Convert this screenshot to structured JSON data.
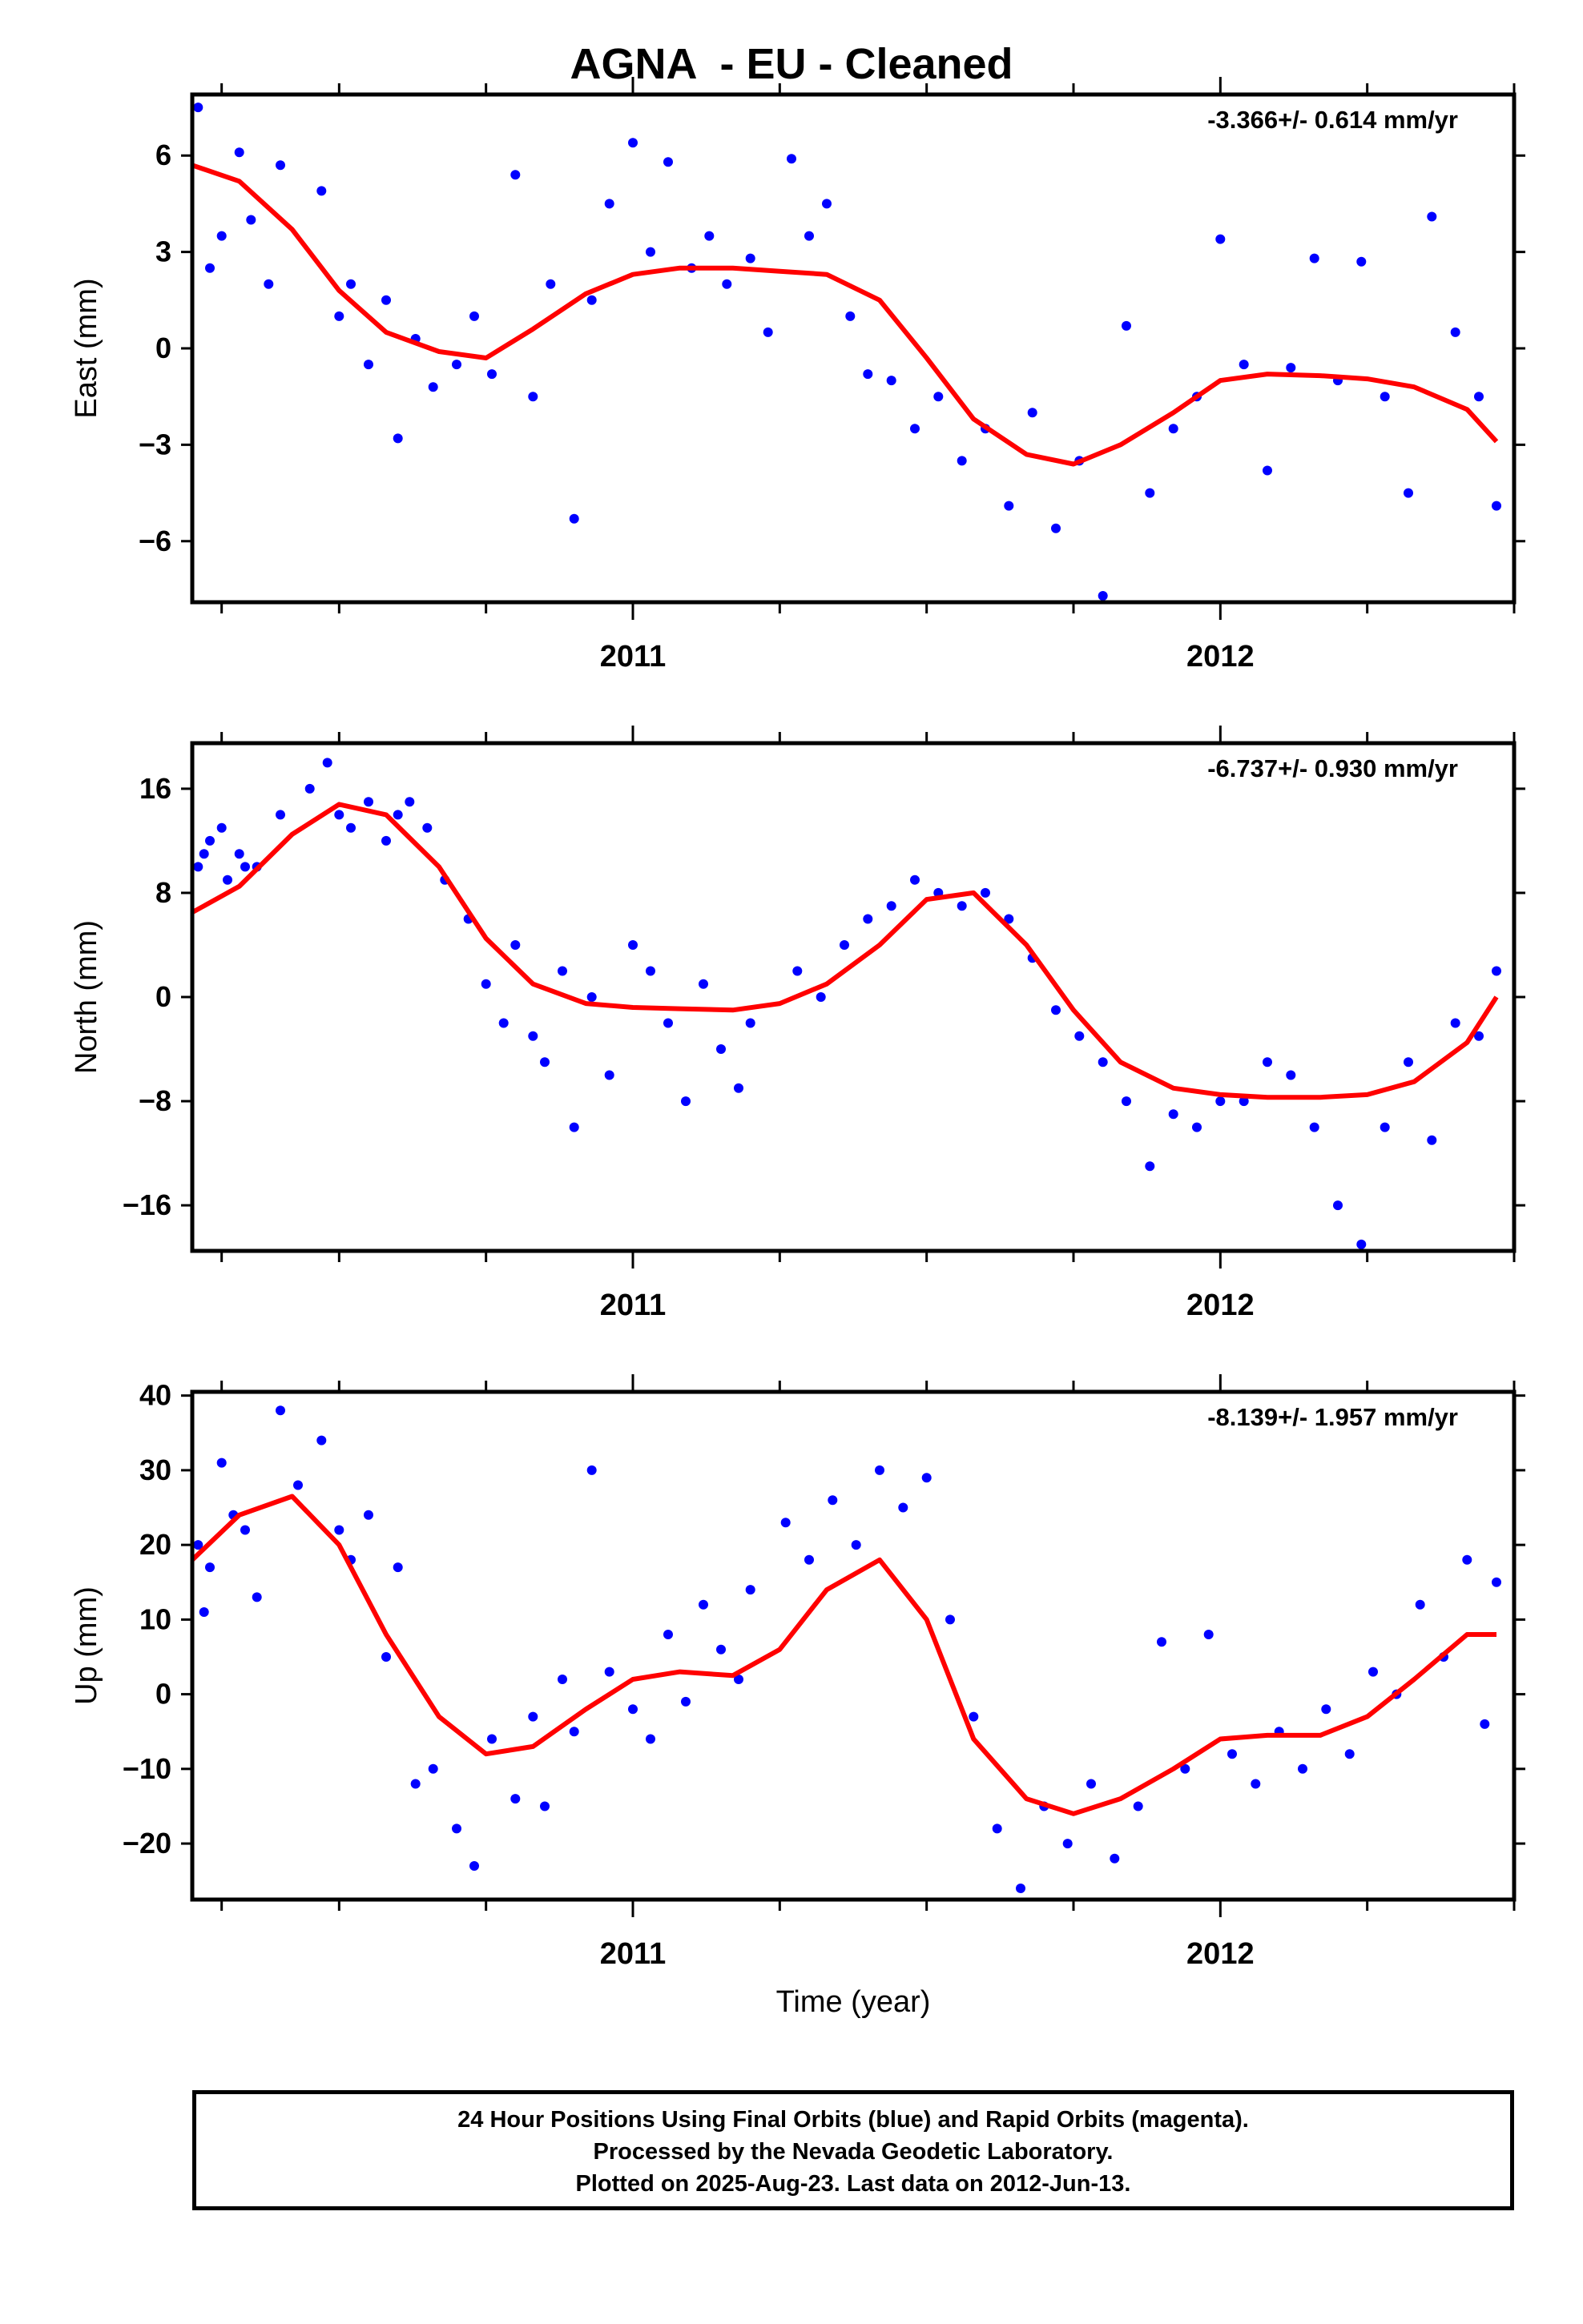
{
  "title": "AGNA  - EU - Cleaned",
  "footer": {
    "line1": "24 Hour Positions Using Final Orbits (blue) and Rapid Orbits (magenta).",
    "line2": "Processed by the Nevada Geodetic Laboratory.",
    "line3": "Plotted on 2025-Aug-23. Last data on 2012-Jun-13."
  },
  "colors": {
    "points": "#0000ff",
    "fit": "#ff0000",
    "axis": "#000000"
  },
  "chart_data": [
    {
      "type": "scatter",
      "name": "east",
      "ylabel": "East (mm)",
      "xlabel": "",
      "rate_label": "-3.366+/- 0.614 mm/yr",
      "xlim": [
        2010.25,
        2012.5
      ],
      "ylim": [
        -7.9,
        7.9
      ],
      "yticks": [
        -6,
        -3,
        0,
        3,
        6
      ],
      "yticklabels": [
        "−6",
        "−3",
        "0",
        "3",
        "6"
      ],
      "xticks": [
        2011,
        2012
      ],
      "xminor": [
        2010.3,
        2010.5,
        2010.75,
        2011.25,
        2011.5,
        2011.75,
        2012.25,
        2012.5
      ],
      "fit_x": [
        2010.25,
        2010.33,
        2010.42,
        2010.5,
        2010.58,
        2010.67,
        2010.75,
        2010.83,
        2010.92,
        2011.0,
        2011.08,
        2011.17,
        2011.25,
        2011.33,
        2011.42,
        2011.5,
        2011.58,
        2011.67,
        2011.75,
        2011.83,
        2011.92,
        2012.0,
        2012.08,
        2012.17,
        2012.25,
        2012.33,
        2012.42,
        2012.47
      ],
      "fit_y": [
        5.7,
        5.2,
        3.7,
        1.8,
        0.5,
        -0.1,
        -0.3,
        0.6,
        1.7,
        2.3,
        2.5,
        2.5,
        2.4,
        2.3,
        1.5,
        -0.3,
        -2.2,
        -3.3,
        -3.6,
        -3.0,
        -2.0,
        -1.0,
        -0.8,
        -0.85,
        -0.95,
        -1.2,
        -1.9,
        -2.9
      ],
      "points": {
        "x": [
          2010.26,
          2010.28,
          2010.3,
          2010.33,
          2010.35,
          2010.38,
          2010.4,
          2010.47,
          2010.5,
          2010.52,
          2010.55,
          2010.58,
          2010.6,
          2010.63,
          2010.66,
          2010.7,
          2010.73,
          2010.76,
          2010.8,
          2010.83,
          2010.86,
          2010.9,
          2010.93,
          2010.96,
          2011.0,
          2011.03,
          2011.06,
          2011.1,
          2011.13,
          2011.16,
          2011.2,
          2011.23,
          2011.27,
          2011.3,
          2011.33,
          2011.37,
          2011.4,
          2011.44,
          2011.48,
          2011.52,
          2011.56,
          2011.6,
          2011.64,
          2011.68,
          2011.72,
          2011.76,
          2011.8,
          2011.84,
          2011.88,
          2011.92,
          2011.96,
          2012.0,
          2012.04,
          2012.08,
          2012.12,
          2012.16,
          2012.2,
          2012.24,
          2012.28,
          2012.32,
          2012.36,
          2012.4,
          2012.44,
          2012.47
        ],
        "y": [
          7.5,
          2.5,
          3.5,
          6.1,
          4.0,
          2.0,
          5.7,
          4.9,
          1.0,
          2.0,
          -0.5,
          1.5,
          -2.8,
          0.3,
          -1.2,
          -0.5,
          1.0,
          -0.8,
          5.4,
          -1.5,
          2.0,
          -5.3,
          1.5,
          4.5,
          6.4,
          3.0,
          5.8,
          2.5,
          3.5,
          2.0,
          2.8,
          0.5,
          5.9,
          3.5,
          4.5,
          1.0,
          -0.8,
          -1.0,
          -2.5,
          -1.5,
          -3.5,
          -2.5,
          -4.9,
          -2.0,
          -5.6,
          -3.5,
          -7.7,
          0.7,
          -4.5,
          -2.5,
          -1.5,
          3.4,
          -0.5,
          -3.8,
          -0.6,
          2.8,
          -1.0,
          2.7,
          -1.5,
          -4.5,
          4.1,
          0.5,
          -1.5,
          -4.9
        ]
      }
    },
    {
      "type": "scatter",
      "name": "north",
      "ylabel": "North (mm)",
      "xlabel": "",
      "rate_label": "-6.737+/- 0.930 mm/yr",
      "xlim": [
        2010.25,
        2012.5
      ],
      "ylim": [
        -19.5,
        19.5
      ],
      "yticks": [
        -16,
        -8,
        0,
        8,
        16
      ],
      "yticklabels": [
        "−16",
        "−8",
        "0",
        "8",
        "16"
      ],
      "xticks": [
        2011,
        2012
      ],
      "xminor": [
        2010.3,
        2010.5,
        2010.75,
        2011.25,
        2011.5,
        2011.75,
        2012.25,
        2012.5
      ],
      "fit_x": [
        2010.25,
        2010.33,
        2010.42,
        2010.5,
        2010.58,
        2010.67,
        2010.75,
        2010.83,
        2010.92,
        2011.0,
        2011.08,
        2011.17,
        2011.25,
        2011.33,
        2011.42,
        2011.5,
        2011.58,
        2011.67,
        2011.75,
        2011.83,
        2011.92,
        2012.0,
        2012.08,
        2012.17,
        2012.25,
        2012.33,
        2012.42,
        2012.47
      ],
      "fit_y": [
        6.5,
        8.5,
        12.5,
        14.8,
        14.0,
        10.0,
        4.5,
        1.0,
        -0.5,
        -0.8,
        -0.9,
        -1.0,
        -0.5,
        1.0,
        4.0,
        7.5,
        8.0,
        4.0,
        -1.0,
        -5.0,
        -7.0,
        -7.5,
        -7.7,
        -7.7,
        -7.5,
        -6.5,
        -3.5,
        0.0
      ],
      "points": {
        "x": [
          2010.26,
          2010.27,
          2010.28,
          2010.3,
          2010.31,
          2010.33,
          2010.34,
          2010.36,
          2010.4,
          2010.45,
          2010.48,
          2010.5,
          2010.52,
          2010.55,
          2010.58,
          2010.6,
          2010.62,
          2010.65,
          2010.68,
          2010.72,
          2010.75,
          2010.78,
          2010.8,
          2010.83,
          2010.85,
          2010.88,
          2010.9,
          2010.93,
          2010.96,
          2011.0,
          2011.03,
          2011.06,
          2011.09,
          2011.12,
          2011.15,
          2011.18,
          2011.2,
          2011.28,
          2011.32,
          2011.36,
          2011.4,
          2011.44,
          2011.48,
          2011.52,
          2011.56,
          2011.6,
          2011.64,
          2011.68,
          2011.72,
          2011.76,
          2011.8,
          2011.84,
          2011.88,
          2011.92,
          2011.96,
          2012.0,
          2012.04,
          2012.08,
          2012.12,
          2012.16,
          2012.2,
          2012.24,
          2012.28,
          2012.32,
          2012.36,
          2012.4,
          2012.44,
          2012.47
        ],
        "y": [
          10.0,
          11.0,
          12.0,
          13.0,
          9.0,
          11.0,
          10.0,
          10.0,
          14.0,
          16.0,
          18.0,
          14.0,
          13.0,
          15.0,
          12.0,
          14.0,
          15.0,
          13.0,
          9.0,
          6.0,
          1.0,
          -2.0,
          4.0,
          -3.0,
          -5.0,
          2.0,
          -10.0,
          0.0,
          -6.0,
          4.0,
          2.0,
          -2.0,
          -8.0,
          1.0,
          -4.0,
          -7.0,
          -2.0,
          2.0,
          0.0,
          4.0,
          6.0,
          7.0,
          9.0,
          8.0,
          7.0,
          8.0,
          6.0,
          3.0,
          -1.0,
          -3.0,
          -5.0,
          -8.0,
          -13.0,
          -9.0,
          -10.0,
          -8.0,
          -8.0,
          -5.0,
          -6.0,
          -10.0,
          -16.0,
          -19.0,
          -10.0,
          -5.0,
          -11.0,
          -2.0,
          -3.0,
          2.0
        ]
      }
    },
    {
      "type": "scatter",
      "name": "up",
      "ylabel": "Up (mm)",
      "xlabel": "Time (year)",
      "rate_label": "-8.139+/- 1.957 mm/yr",
      "xlim": [
        2010.25,
        2012.5
      ],
      "ylim": [
        -27.5,
        40.5
      ],
      "yticks": [
        -20,
        -10,
        0,
        10,
        20,
        30,
        40
      ],
      "yticklabels": [
        "−20",
        "−10",
        "0",
        "10",
        "20",
        "30",
        "40"
      ],
      "xticks": [
        2011,
        2012
      ],
      "xminor": [
        2010.3,
        2010.5,
        2010.75,
        2011.25,
        2011.5,
        2011.75,
        2012.25,
        2012.5
      ],
      "fit_x": [
        2010.25,
        2010.33,
        2010.42,
        2010.5,
        2010.58,
        2010.67,
        2010.75,
        2010.83,
        2010.92,
        2011.0,
        2011.08,
        2011.17,
        2011.25,
        2011.33,
        2011.42,
        2011.5,
        2011.58,
        2011.67,
        2011.75,
        2011.83,
        2011.92,
        2012.0,
        2012.08,
        2012.17,
        2012.25,
        2012.33,
        2012.42,
        2012.47
      ],
      "fit_y": [
        18.0,
        24.0,
        26.5,
        20.0,
        8.0,
        -3.0,
        -8.0,
        -7.0,
        -2.0,
        2.0,
        3.0,
        2.5,
        6.0,
        14.0,
        18.0,
        10.0,
        -6.0,
        -14.0,
        -16.0,
        -14.0,
        -10.0,
        -6.0,
        -5.5,
        -5.5,
        -3.0,
        2.0,
        8.0,
        8.0
      ],
      "points": {
        "x": [
          2010.26,
          2010.27,
          2010.28,
          2010.3,
          2010.32,
          2010.34,
          2010.36,
          2010.4,
          2010.43,
          2010.47,
          2010.5,
          2010.52,
          2010.55,
          2010.58,
          2010.6,
          2010.63,
          2010.66,
          2010.7,
          2010.73,
          2010.76,
          2010.8,
          2010.83,
          2010.85,
          2010.88,
          2010.9,
          2010.93,
          2010.96,
          2011.0,
          2011.03,
          2011.06,
          2011.09,
          2011.12,
          2011.15,
          2011.18,
          2011.2,
          2011.26,
          2011.3,
          2011.34,
          2011.38,
          2011.42,
          2011.46,
          2011.5,
          2011.54,
          2011.58,
          2011.62,
          2011.66,
          2011.7,
          2011.74,
          2011.78,
          2011.82,
          2011.86,
          2011.9,
          2011.94,
          2011.98,
          2012.02,
          2012.06,
          2012.1,
          2012.14,
          2012.18,
          2012.22,
          2012.26,
          2012.3,
          2012.34,
          2012.38,
          2012.42,
          2012.45,
          2012.47
        ],
        "y": [
          20.0,
          11.0,
          17.0,
          31.0,
          24.0,
          22.0,
          13.0,
          38.0,
          28.0,
          34.0,
          22.0,
          18.0,
          24.0,
          5.0,
          17.0,
          -12.0,
          -10.0,
          -18.0,
          -23.0,
          -6.0,
          -14.0,
          -3.0,
          -15.0,
          2.0,
          -5.0,
          30.0,
          3.0,
          -2.0,
          -6.0,
          8.0,
          -1.0,
          12.0,
          6.0,
          2.0,
          14.0,
          23.0,
          18.0,
          26.0,
          20.0,
          30.0,
          25.0,
          29.0,
          10.0,
          -3.0,
          -18.0,
          -26.0,
          -15.0,
          -20.0,
          -12.0,
          -22.0,
          -15.0,
          7.0,
          -10.0,
          8.0,
          -8.0,
          -12.0,
          -5.0,
          -10.0,
          -2.0,
          -8.0,
          3.0,
          0.0,
          12.0,
          5.0,
          18.0,
          -4.0,
          15.0
        ]
      }
    }
  ]
}
